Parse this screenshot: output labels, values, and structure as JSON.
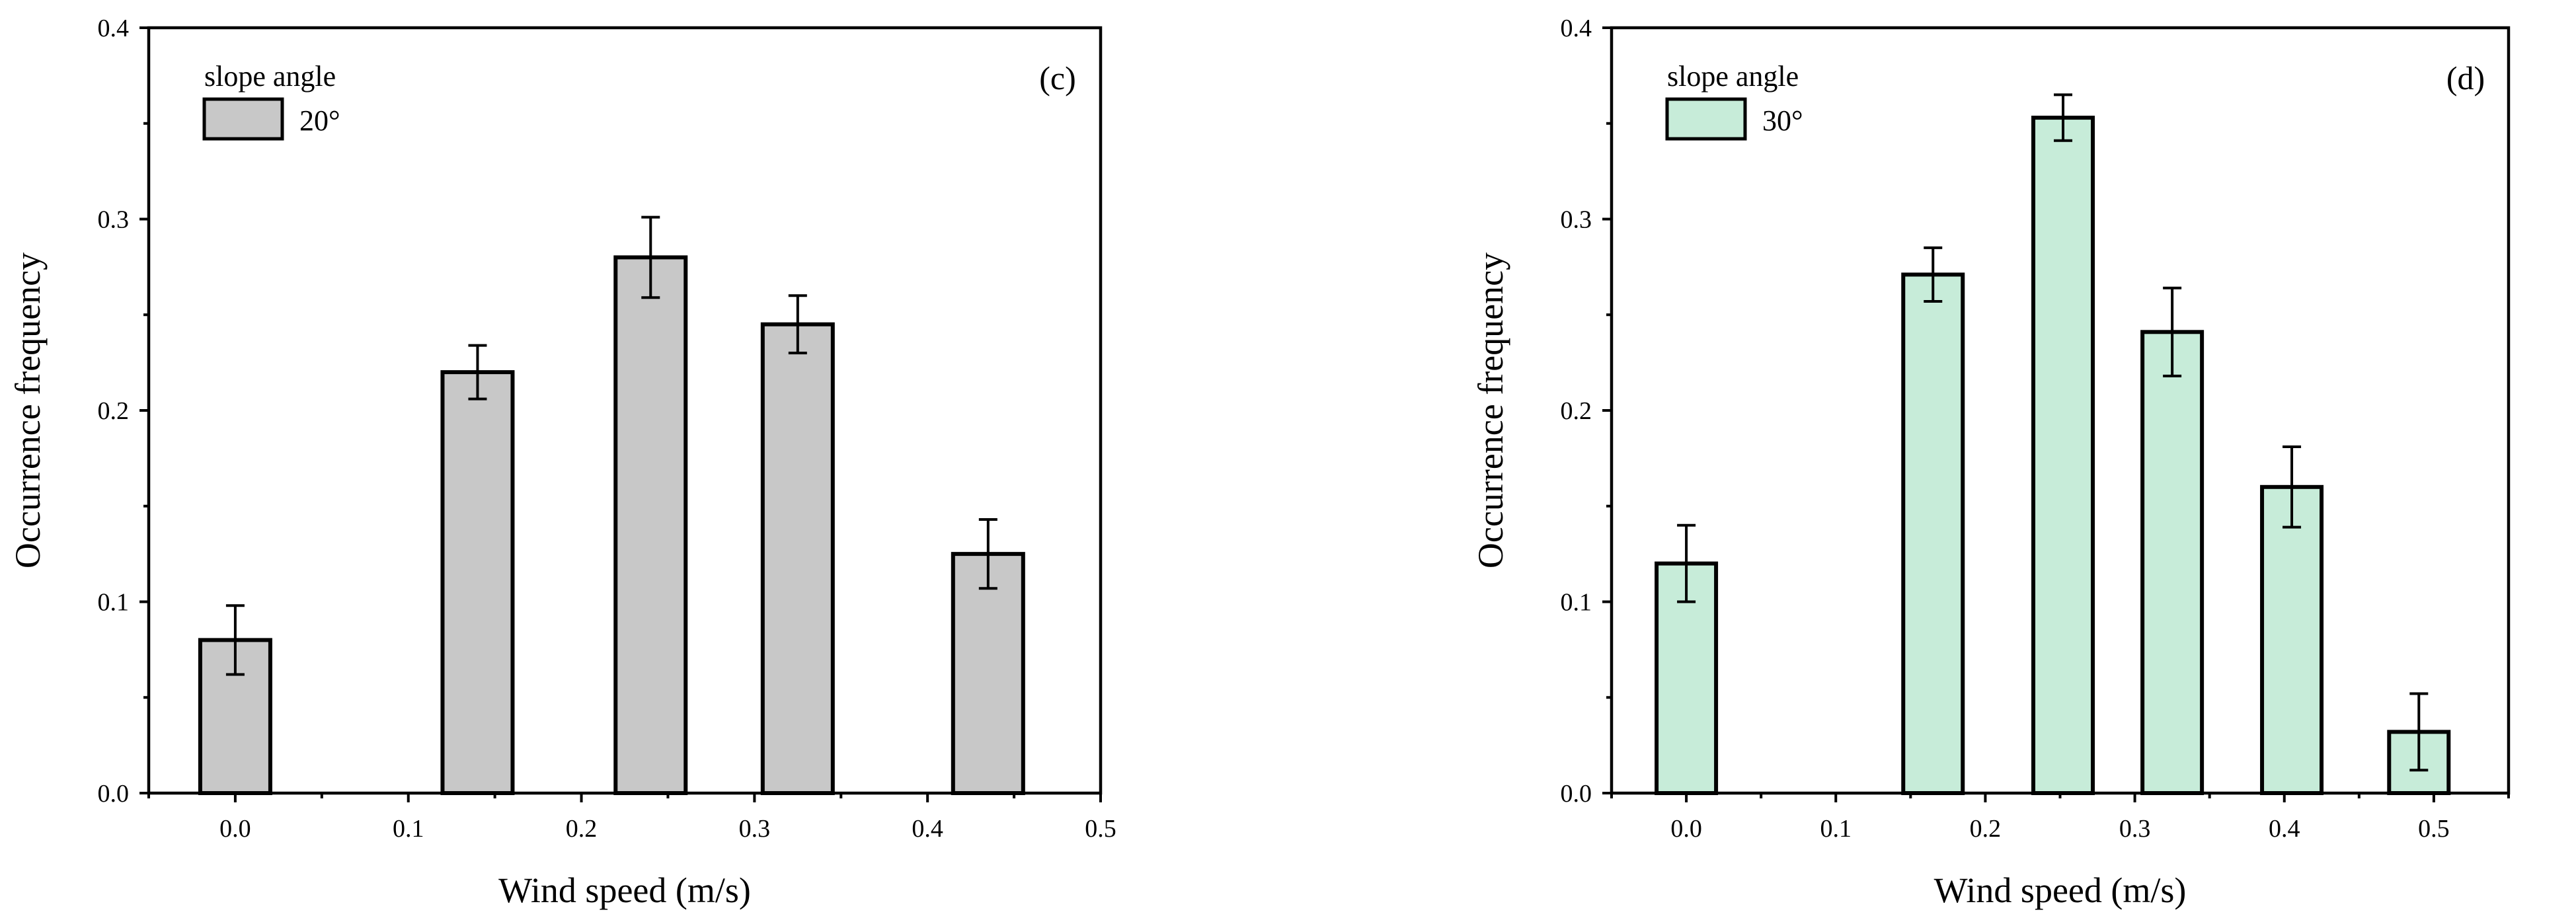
{
  "chart_data": [
    {
      "type": "bar",
      "panel_label": "(c)",
      "xlabel": "Wind speed (m/s)",
      "ylabel": "Occurrence frequency",
      "xlim": [
        -0.05,
        0.5
      ],
      "ylim": [
        0.0,
        0.4
      ],
      "xticks": [
        "0.0",
        "0.1",
        "0.2",
        "0.3",
        "0.4",
        "0.5"
      ],
      "yticks": [
        "0.0",
        "0.1",
        "0.2",
        "0.3",
        "0.4"
      ],
      "legend": {
        "title": "slope angle",
        "label": "20°",
        "position": "top-left"
      },
      "color": "#c8c8c8",
      "series": [
        {
          "name": "20°",
          "x": [
            0.0,
            0.14,
            0.24,
            0.325,
            0.435
          ],
          "values": [
            0.08,
            0.22,
            0.28,
            0.245,
            0.125
          ],
          "errors": [
            0.018,
            0.014,
            0.021,
            0.015,
            0.018
          ]
        }
      ]
    },
    {
      "type": "bar",
      "panel_label": "(d)",
      "xlabel": "Wind speed (m/s)",
      "ylabel": "Occurrence frequency",
      "xlim": [
        -0.05,
        0.55
      ],
      "ylim": [
        0.0,
        0.4
      ],
      "xticks": [
        "0.0",
        "0.1",
        "0.2",
        "0.3",
        "0.4",
        "0.5"
      ],
      "yticks": [
        "0.0",
        "0.1",
        "0.2",
        "0.3",
        "0.4"
      ],
      "legend": {
        "title": "slope angle",
        "label": "30°",
        "position": "top-left"
      },
      "color": "#c7ecd9",
      "series": [
        {
          "name": "30°",
          "x": [
            0.0,
            0.165,
            0.252,
            0.325,
            0.405,
            0.49
          ],
          "values": [
            0.12,
            0.271,
            0.353,
            0.241,
            0.16,
            0.032
          ],
          "errors": [
            0.02,
            0.014,
            0.012,
            0.023,
            0.021,
            0.02
          ]
        }
      ]
    }
  ]
}
